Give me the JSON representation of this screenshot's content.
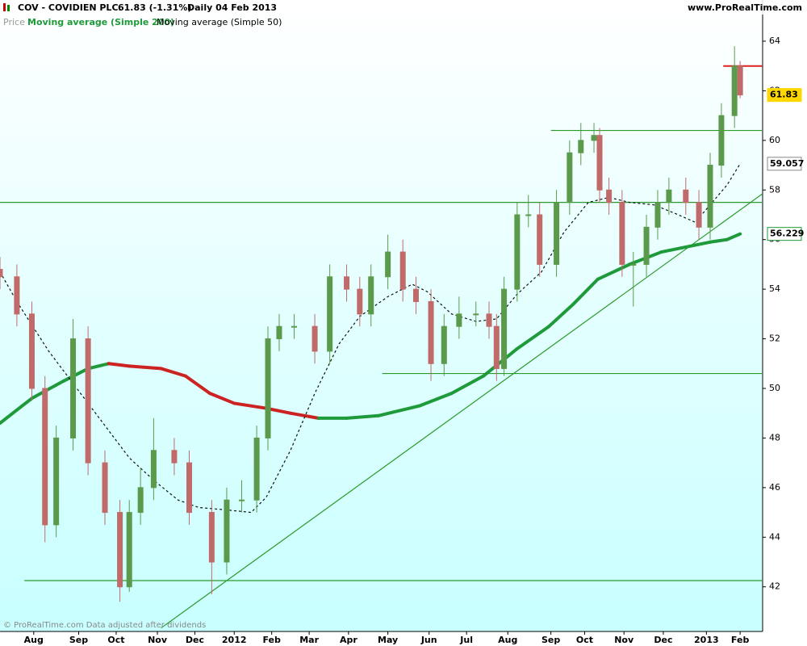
{
  "header": {
    "symbol": "COV - COVIDIEN PLC.",
    "quote": "61.83 (-1.31%)",
    "period": "Daily  04 Feb 2013",
    "site": "www.ProRealTime.com"
  },
  "footer": "© ProRealTime.com Data adjusted after dividends",
  "chart_data": {
    "type": "candlestick",
    "legend": [
      "Price",
      "Moving average (Simple 200)",
      "Moving average (Simple 50)"
    ],
    "x": [
      0,
      9,
      17,
      24,
      30,
      39,
      47,
      56,
      64,
      69,
      75,
      82,
      93,
      101,
      113,
      121,
      129,
      137,
      143,
      149,
      157,
      168,
      176,
      185,
      192,
      198,
      207,
      215,
      222,
      230,
      237,
      245,
      254,
      261,
      265,
      269,
      276,
      282,
      288,
      297,
      304,
      310,
      317,
      320,
      325,
      332,
      338,
      345,
      351,
      357,
      366,
      373,
      379,
      385,
      392,
      395
    ],
    "open": [
      54.8,
      54.5,
      53,
      50,
      44.5,
      48,
      52,
      47,
      45,
      42,
      45,
      46,
      47.5,
      47,
      45,
      43,
      45.5,
      45.5,
      48,
      52,
      52.5,
      52.5,
      51.5,
      54.5,
      54,
      53,
      54.5,
      55.5,
      54,
      53.5,
      51,
      52.5,
      53,
      53,
      52.5,
      50.8,
      54,
      57,
      57,
      55,
      57.5,
      59.5,
      60,
      60.2,
      58,
      57.5,
      55,
      55,
      56.5,
      57.5,
      58,
      57.5,
      56.5,
      59,
      61,
      63
    ],
    "high": [
      55.3,
      55,
      53.5,
      50.5,
      48.5,
      52.8,
      52.5,
      47.5,
      45.5,
      45.5,
      46.8,
      48.8,
      48,
      47.5,
      45.5,
      46,
      46.3,
      48.5,
      52.5,
      53,
      53,
      53,
      55,
      55,
      54.5,
      55,
      56.2,
      56,
      54.5,
      54,
      53,
      53.7,
      53.5,
      53.5,
      53,
      54.5,
      57.5,
      57.8,
      57.5,
      58,
      60,
      60.7,
      60.7,
      60.5,
      58.5,
      58,
      55.5,
      57,
      58,
      58.5,
      58.5,
      58,
      59.5,
      61.5,
      63.8,
      63.2
    ],
    "low": [
      54,
      52.5,
      49.5,
      43.8,
      44,
      47.5,
      46.5,
      44.5,
      41.4,
      41.8,
      44.5,
      45.5,
      46.5,
      44.5,
      41.7,
      42.5,
      45,
      45,
      47.5,
      51.5,
      52,
      51,
      51,
      53.5,
      52.5,
      52.5,
      54,
      53.5,
      53,
      50.3,
      50.5,
      52,
      52.5,
      52,
      50.3,
      50.5,
      53.5,
      56.5,
      54.5,
      54.5,
      57,
      59,
      59.5,
      57.5,
      57,
      54.5,
      53.3,
      54.5,
      56,
      57,
      57,
      56,
      56,
      58.5,
      60.5,
      61.7
    ],
    "close": [
      54.5,
      53,
      50,
      44.5,
      48,
      52,
      47,
      45,
      42,
      45,
      46,
      47.5,
      47,
      45,
      43,
      45.5,
      45.5,
      48,
      52,
      52.5,
      52.5,
      51.5,
      54.5,
      54,
      53,
      54.5,
      55.5,
      54,
      53.5,
      51,
      52.5,
      53,
      53,
      52.5,
      50.8,
      54,
      57,
      57,
      55,
      57.5,
      59.5,
      60,
      60.2,
      58,
      57.5,
      55,
      55,
      56.5,
      57.5,
      58,
      57.5,
      56.5,
      59,
      61,
      63,
      61.83
    ],
    "up_color": "#5a9a4a",
    "down_color": "#c06a6a",
    "series": [
      {
        "name": "Moving average (Simple 200)",
        "color": "#1e9a3a",
        "down_color": "#cc2222",
        "x": [
          0,
          17,
          34,
          47,
          58,
          69,
          86,
          99,
          112,
          125,
          142,
          155,
          170,
          185,
          202,
          224,
          241,
          258,
          276,
          293,
          306,
          319,
          336,
          353,
          366,
          379,
          388,
          395
        ],
        "values": [
          48.6,
          49.6,
          50.3,
          50.8,
          51.0,
          50.9,
          50.8,
          50.5,
          49.8,
          49.4,
          49.2,
          49.0,
          48.8,
          48.8,
          48.9,
          49.3,
          49.8,
          50.5,
          51.6,
          52.5,
          53.4,
          54.4,
          55.0,
          55.5,
          55.7,
          55.9,
          56.0,
          56.229
        ]
      },
      {
        "name": "Moving average (Simple 50)",
        "color": "#111111",
        "x": [
          0,
          9,
          26,
          43,
          56,
          69,
          82,
          95,
          106,
          121,
          134,
          142,
          155,
          168,
          181,
          192,
          207,
          220,
          228,
          241,
          254,
          265,
          276,
          289,
          301,
          314,
          325,
          336,
          349,
          362,
          371,
          379,
          388,
          395
        ],
        "values": [
          54.7,
          53.5,
          51.5,
          49.8,
          48.5,
          47.2,
          46.3,
          45.5,
          45.2,
          45.1,
          45.0,
          45.6,
          47.5,
          49.8,
          51.8,
          52.9,
          53.7,
          54.2,
          53.9,
          53.0,
          52.7,
          52.8,
          53.8,
          54.7,
          56.3,
          57.5,
          57.7,
          57.5,
          57.4,
          57.0,
          56.7,
          57.4,
          58.2,
          59.057
        ]
      }
    ],
    "lines": [
      {
        "x": [
          0,
          407
        ],
        "y": [
          57.5,
          57.5
        ],
        "color": "#2a9a2a"
      },
      {
        "x": [
          294,
          407
        ],
        "y": [
          60.4,
          60.4
        ],
        "color": "#2a9a2a"
      },
      {
        "x": [
          204,
          407
        ],
        "y": [
          50.6,
          50.6
        ],
        "color": "#2a9a2a"
      },
      {
        "x": [
          13,
          407
        ],
        "y": [
          42.25,
          42.25
        ],
        "color": "#2a9a2a"
      },
      {
        "x": [
          386,
          407
        ],
        "y": [
          63.0,
          63.0
        ],
        "color": "#dd2222"
      },
      {
        "x": [
          86,
          407
        ],
        "y": [
          40.34,
          57.85
        ],
        "color": "#2a9a2a"
      }
    ],
    "xlim": [
      0,
      407
    ],
    "ylim": [
      40.2,
      65.66
    ],
    "yticks": [
      42,
      44,
      46,
      48,
      50,
      52,
      54,
      56,
      58,
      60,
      62,
      64
    ],
    "xticks": [
      {
        "value": 18,
        "label": "Aug"
      },
      {
        "value": 42,
        "label": "Sep"
      },
      {
        "value": 62,
        "label": "Oct"
      },
      {
        "value": 84,
        "label": "Nov"
      },
      {
        "value": 104,
        "label": "Dec"
      },
      {
        "value": 125,
        "label": "2012"
      },
      {
        "value": 145,
        "label": "Feb"
      },
      {
        "value": 165,
        "label": "Mar"
      },
      {
        "value": 186,
        "label": "Apr"
      },
      {
        "value": 207,
        "label": "May"
      },
      {
        "value": 229,
        "label": "Jun"
      },
      {
        "value": 249,
        "label": "Jul"
      },
      {
        "value": 271,
        "label": "Aug"
      },
      {
        "value": 294,
        "label": "Sep"
      },
      {
        "value": 312,
        "label": "Oct"
      },
      {
        "value": 333,
        "label": "Nov"
      },
      {
        "value": 354,
        "label": "Dec"
      },
      {
        "value": 377,
        "label": "2013"
      },
      {
        "value": 395,
        "label": "Feb"
      }
    ]
  }
}
